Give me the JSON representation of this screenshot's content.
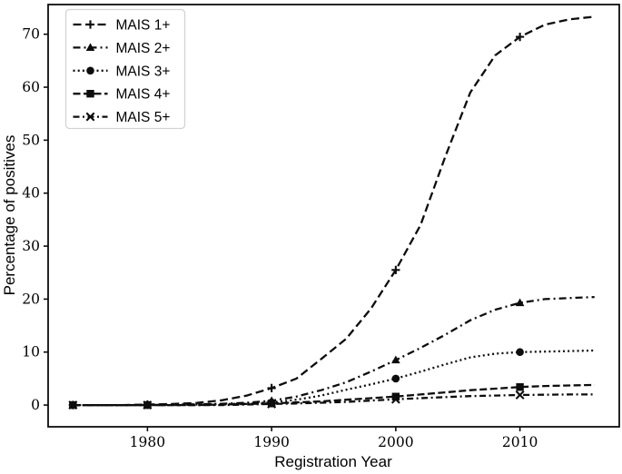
{
  "figure": {
    "background": "#ffffff",
    "line_color": "#0d0d0d",
    "legend_border_color": "#d3d3d3",
    "legend_background": "#ffffff"
  },
  "chart_data": {
    "type": "line",
    "title": "",
    "xlabel": "Registration Year",
    "ylabel": "Percentage of positives",
    "xlim": [
      1972,
      2018
    ],
    "ylim": [
      -4.1,
      75.6
    ],
    "xticks": [
      1980,
      1990,
      2000,
      2010
    ],
    "yticks": [
      0,
      10,
      20,
      30,
      40,
      50,
      60,
      70
    ],
    "grid": false,
    "legend_position": "upper-left",
    "x": [
      1974,
      1976,
      1978,
      1980,
      1982,
      1984,
      1986,
      1988,
      1990,
      1992,
      1994,
      1996,
      1998,
      2000,
      2002,
      2004,
      2006,
      2008,
      2010,
      2012,
      2014,
      2016
    ],
    "marker_x": [
      1974,
      1980,
      1990,
      2000,
      2010
    ],
    "series": [
      {
        "name": "MAIS 1+",
        "marker": "plus",
        "dash": [
          9,
          4.5
        ],
        "color": "#0d0d0d",
        "values": [
          0,
          0,
          0,
          0.1,
          0.2,
          0.4,
          0.9,
          1.8,
          3.2,
          5.0,
          8.7,
          12.5,
          18.2,
          25.5,
          34,
          47,
          59,
          66,
          69.5,
          71.8,
          72.8,
          73.3
        ]
      },
      {
        "name": "MAIS 2+",
        "marker": "triangle",
        "dash": [
          8,
          4,
          2,
          4
        ],
        "color": "#0d0d0d",
        "values": [
          0,
          0,
          0,
          0,
          0.1,
          0.15,
          0.25,
          0.45,
          0.8,
          1.6,
          2.8,
          4.3,
          6.3,
          8.5,
          10.8,
          13.3,
          16.0,
          18.0,
          19.3,
          20.0,
          20.2,
          20.4
        ]
      },
      {
        "name": "MAIS 3+",
        "marker": "circle",
        "dash": [
          2,
          3.2
        ],
        "color": "#0d0d0d",
        "values": [
          0,
          0,
          0,
          0,
          0,
          0.1,
          0.15,
          0.3,
          0.5,
          1.0,
          1.8,
          2.9,
          3.9,
          5.0,
          6.3,
          7.7,
          9.0,
          9.7,
          10.0,
          10.1,
          10.2,
          10.3
        ]
      },
      {
        "name": "MAIS 4+",
        "marker": "square",
        "dash": [
          8,
          3.5
        ],
        "color": "#0d0d0d",
        "values": [
          0,
          0,
          0,
          0,
          0,
          0,
          0.1,
          0.2,
          0.3,
          0.5,
          0.7,
          1.0,
          1.3,
          1.6,
          2.0,
          2.4,
          2.8,
          3.1,
          3.4,
          3.6,
          3.7,
          3.8
        ]
      },
      {
        "name": "MAIS 5+",
        "marker": "x",
        "dash": [
          7,
          3.5,
          2,
          3.5
        ],
        "color": "#0d0d0d",
        "values": [
          0,
          0,
          0,
          0,
          0,
          0,
          0,
          0.1,
          0.2,
          0.3,
          0.45,
          0.6,
          0.85,
          1.1,
          1.3,
          1.5,
          1.7,
          1.8,
          1.9,
          1.95,
          2.0,
          2.0
        ]
      }
    ]
  }
}
